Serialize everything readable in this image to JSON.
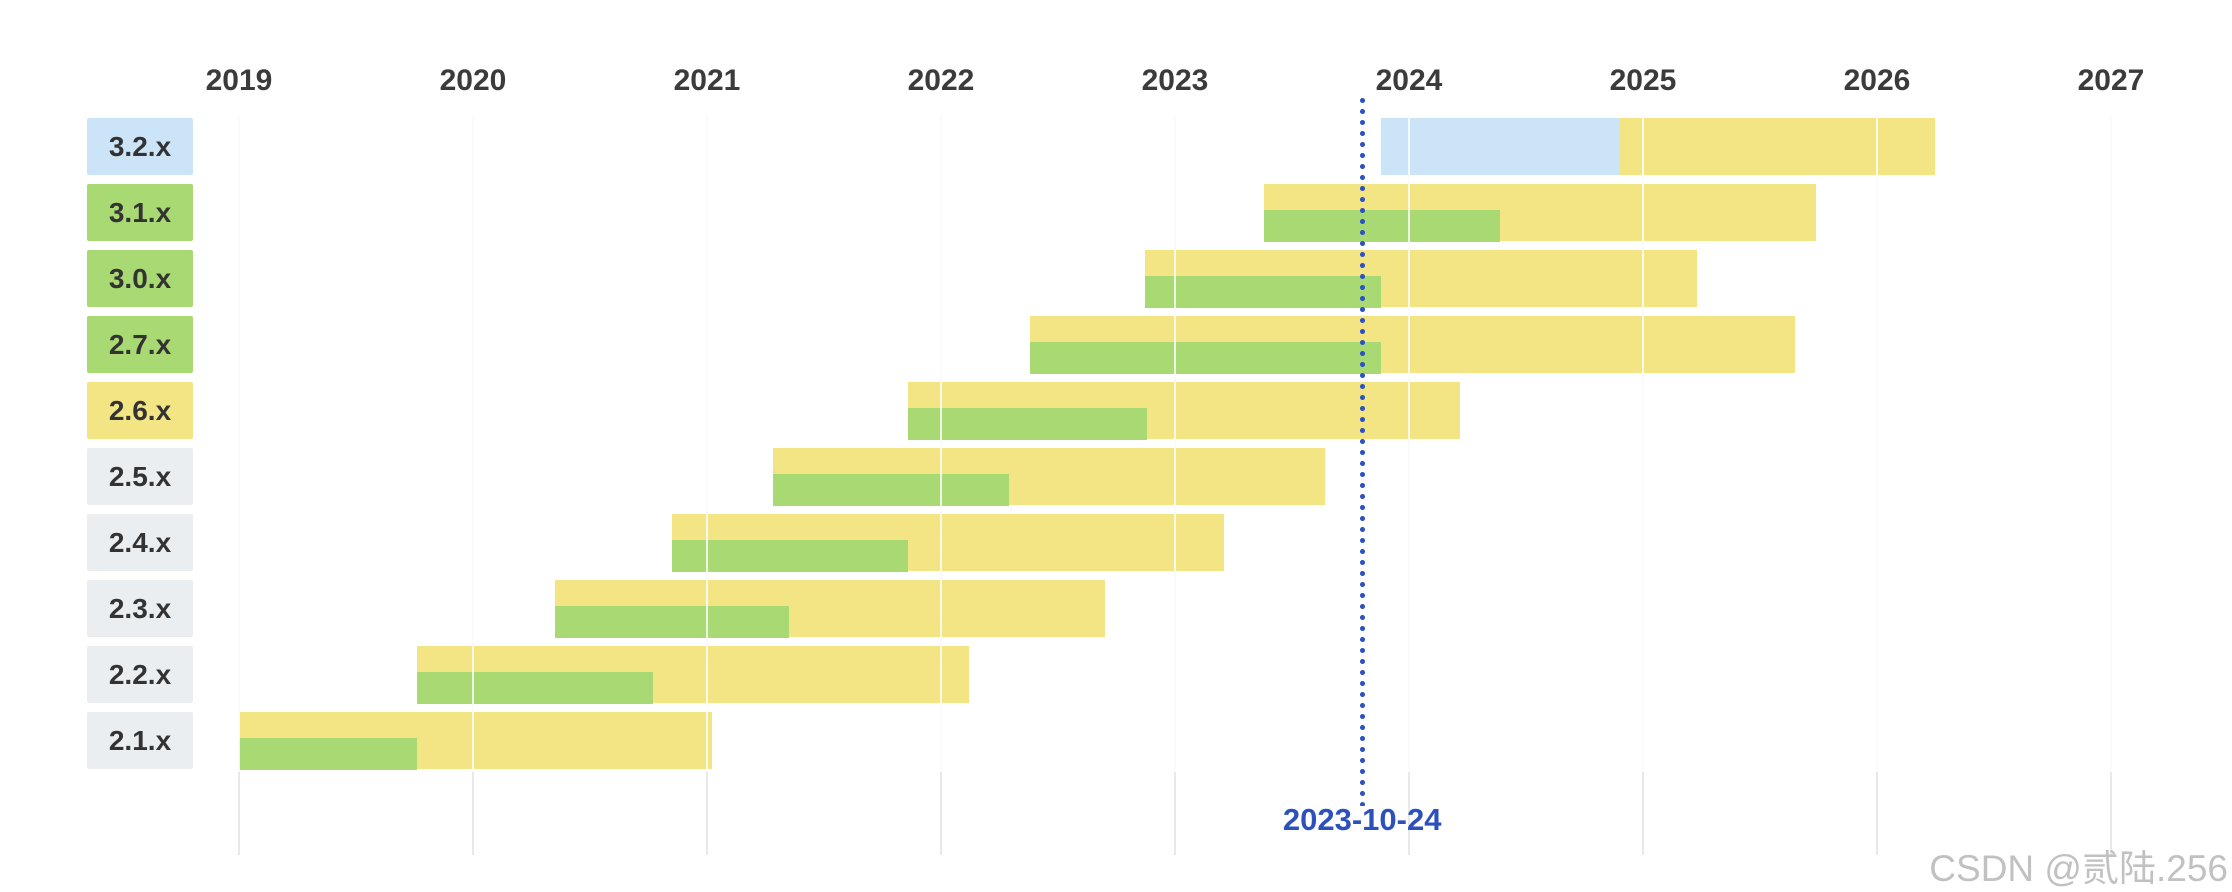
{
  "watermark": "CSDN @贰陆.256",
  "chart_data": {
    "type": "gantt",
    "x_ticks": [
      2019,
      2020,
      2021,
      2022,
      2023,
      2024,
      2025,
      2026,
      2027
    ],
    "x_range": [
      2019,
      2027.5
    ],
    "grid": "on",
    "marker": {
      "label": "2023-10-24",
      "year": 2023.8
    },
    "colors": {
      "support_yellow": "#f3e484",
      "oss_green": "#a8d973",
      "upcoming_blue": "#cbe4f7",
      "label_eol_gray": "#eaeef0",
      "label_text": "#333333",
      "axis_text": "#3b3b3b",
      "gridline": "#e9e9e9",
      "marker_blue": "#2d52c3",
      "marker_text": "#2d50bd",
      "watermark_gray": "#bababa"
    },
    "rows": [
      {
        "label": "3.2.x",
        "state": "upcoming",
        "start": 2023.88,
        "oss_end": 2024.9,
        "end": 2026.25
      },
      {
        "label": "3.1.x",
        "state": "oss",
        "start": 2023.38,
        "oss_end": 2024.39,
        "end": 2025.74
      },
      {
        "label": "3.0.x",
        "state": "oss",
        "start": 2022.87,
        "oss_end": 2023.88,
        "end": 2025.23
      },
      {
        "label": "2.7.x",
        "state": "oss",
        "start": 2022.38,
        "oss_end": 2023.88,
        "end": 2025.65
      },
      {
        "label": "2.6.x",
        "state": "commercial",
        "start": 2021.86,
        "oss_end": 2022.88,
        "end": 2024.22
      },
      {
        "label": "2.5.x",
        "state": "eol",
        "start": 2021.28,
        "oss_end": 2022.29,
        "end": 2023.64
      },
      {
        "label": "2.4.x",
        "state": "eol",
        "start": 2020.85,
        "oss_end": 2021.86,
        "end": 2023.21
      },
      {
        "label": "2.3.x",
        "state": "eol",
        "start": 2020.35,
        "oss_end": 2021.35,
        "end": 2022.7
      },
      {
        "label": "2.2.x",
        "state": "eol",
        "start": 2019.76,
        "oss_end": 2020.77,
        "end": 2022.12
      },
      {
        "label": "2.1.x",
        "state": "eol",
        "start": 2019.0,
        "oss_end": 2019.76,
        "end": 2021.02
      }
    ]
  }
}
